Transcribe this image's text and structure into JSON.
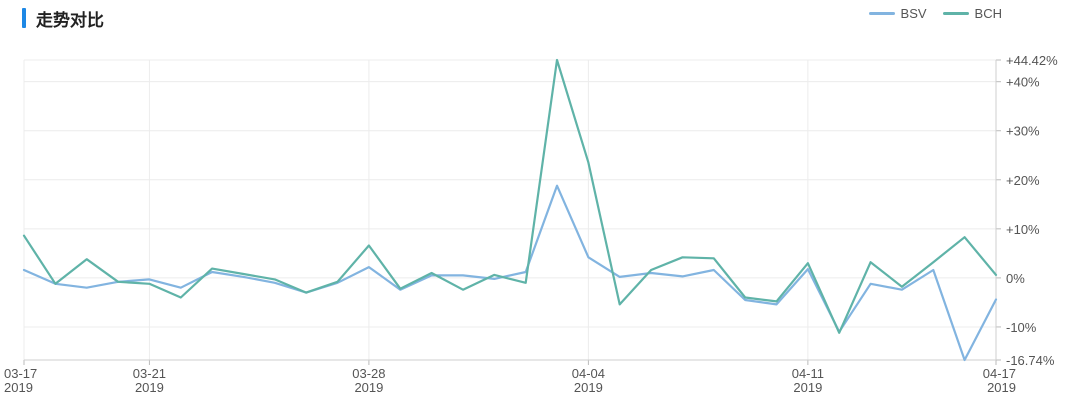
{
  "header": {
    "title": "走势对比"
  },
  "chart_data": {
    "type": "line",
    "title": "走势对比",
    "x_dates": [
      "03-17",
      "03-18",
      "03-19",
      "03-20",
      "03-21",
      "03-22",
      "03-23",
      "03-24",
      "03-25",
      "03-26",
      "03-27",
      "03-28",
      "03-29",
      "03-30",
      "03-31",
      "04-01",
      "04-02",
      "04-03",
      "04-04",
      "04-05",
      "04-06",
      "04-07",
      "04-08",
      "04-09",
      "04-10",
      "04-11",
      "04-12",
      "04-13",
      "04-14",
      "04-15",
      "04-16",
      "04-17"
    ],
    "x_ticks": [
      {
        "date": "03-17",
        "year": "2019"
      },
      {
        "date": "03-21",
        "year": "2019"
      },
      {
        "date": "03-28",
        "year": "2019"
      },
      {
        "date": "04-04",
        "year": "2019"
      },
      {
        "date": "04-11",
        "year": "2019"
      },
      {
        "date": "04-17",
        "year": "2019"
      }
    ],
    "y_ticks": [
      "+44.42%",
      "+40%",
      "+30%",
      "+20%",
      "+10%",
      "0%",
      "-10%",
      "-16.74%"
    ],
    "y_tick_values": [
      44.42,
      40,
      30,
      20,
      10,
      0,
      -10,
      -16.74
    ],
    "ylim": [
      -16.74,
      44.42
    ],
    "legend_position": "top-right",
    "grid": true,
    "series": [
      {
        "name": "BSV",
        "color": "#82b4e0",
        "values": [
          1.6,
          -1.2,
          -2.0,
          -0.8,
          -0.3,
          -2.0,
          1.2,
          0.2,
          -1.0,
          -3.0,
          -1.0,
          2.2,
          -2.4,
          0.5,
          0.5,
          -0.2,
          1.2,
          18.8,
          4.2,
          0.2,
          1.0,
          0.3,
          1.6,
          -4.5,
          -5.4,
          1.8,
          -11.0,
          -1.2,
          -2.4,
          1.6,
          -16.74,
          -4.4
        ]
      },
      {
        "name": "BCH",
        "color": "#5fb3a8",
        "values": [
          8.6,
          -1.2,
          3.8,
          -0.8,
          -1.2,
          -4.0,
          1.9,
          0.8,
          -0.3,
          -3.0,
          -0.8,
          6.6,
          -2.2,
          1.0,
          -2.4,
          0.6,
          -1.0,
          44.42,
          23.5,
          -5.4,
          1.6,
          4.2,
          4.0,
          -4.0,
          -4.8,
          3.0,
          -11.2,
          3.2,
          -1.8,
          3.2,
          8.3,
          0.6
        ]
      }
    ]
  }
}
